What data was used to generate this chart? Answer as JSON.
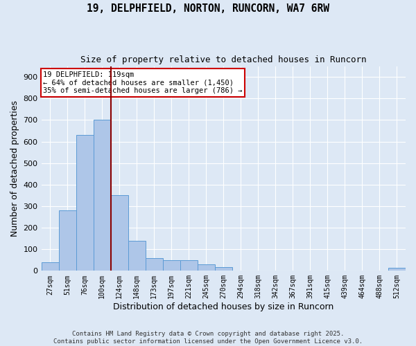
{
  "title1": "19, DELPHFIELD, NORTON, RUNCORN, WA7 6RW",
  "title2": "Size of property relative to detached houses in Runcorn",
  "xlabel": "Distribution of detached houses by size in Runcorn",
  "ylabel": "Number of detached properties",
  "categories": [
    "27sqm",
    "51sqm",
    "76sqm",
    "100sqm",
    "124sqm",
    "148sqm",
    "173sqm",
    "197sqm",
    "221sqm",
    "245sqm",
    "270sqm",
    "294sqm",
    "318sqm",
    "342sqm",
    "367sqm",
    "391sqm",
    "415sqm",
    "439sqm",
    "464sqm",
    "488sqm",
    "512sqm"
  ],
  "values": [
    40,
    280,
    630,
    700,
    350,
    140,
    60,
    50,
    50,
    30,
    18,
    0,
    0,
    0,
    0,
    0,
    0,
    0,
    0,
    0,
    15
  ],
  "bar_color": "#aec6e8",
  "bar_edge_color": "#5b9bd5",
  "vline_color": "#8b0000",
  "annotation_text1": "19 DELPHFIELD: 119sqm",
  "annotation_text2": "← 64% of detached houses are smaller (1,450)",
  "annotation_text3": "35% of semi-detached houses are larger (786) →",
  "annotation_box_facecolor": "white",
  "annotation_box_edgecolor": "#cc0000",
  "background_color": "#dde8f5",
  "plot_bg_color": "#dde8f5",
  "ylim": [
    0,
    950
  ],
  "yticks": [
    0,
    100,
    200,
    300,
    400,
    500,
    600,
    700,
    800,
    900
  ],
  "footer1": "Contains HM Land Registry data © Crown copyright and database right 2025.",
  "footer2": "Contains public sector information licensed under the Open Government Licence v3.0."
}
